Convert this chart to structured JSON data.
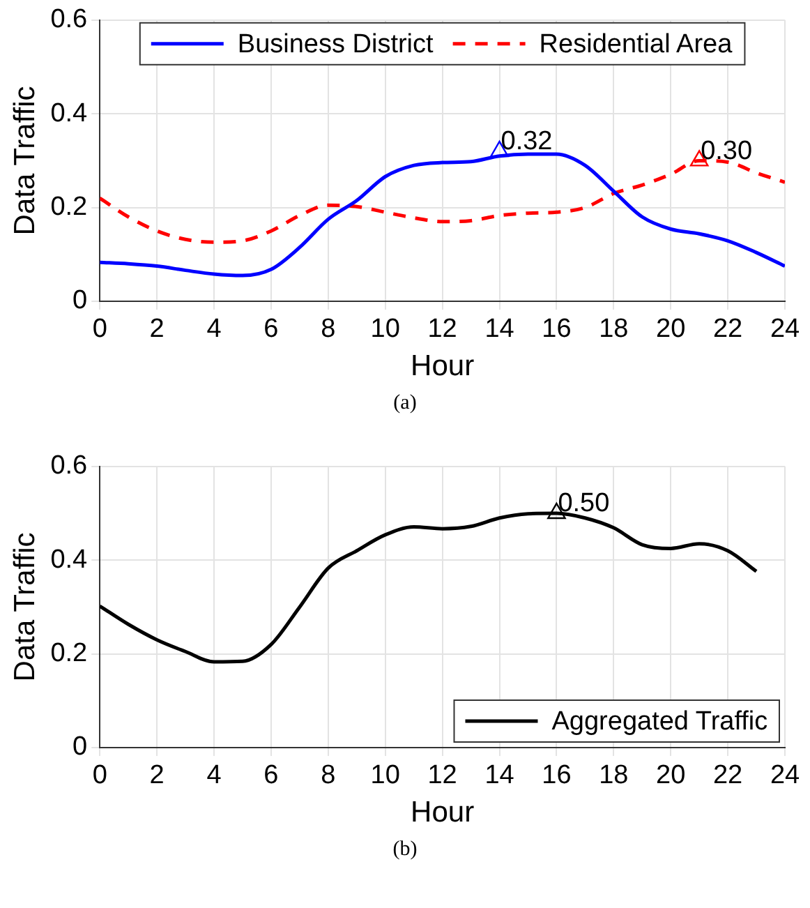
{
  "chart_data": [
    {
      "type": "line",
      "xlabel": "Hour",
      "ylabel": "Data Traffic",
      "x": [
        0,
        1,
        2,
        3,
        4,
        5,
        6,
        7,
        8,
        9,
        10,
        11,
        12,
        13,
        14,
        15,
        16,
        17,
        18,
        19,
        20,
        21,
        22,
        23,
        24
      ],
      "xlim": [
        0,
        24
      ],
      "xticks": [
        0,
        2,
        4,
        6,
        8,
        10,
        12,
        14,
        16,
        18,
        20,
        22,
        24
      ],
      "ylim": [
        0,
        0.6
      ],
      "yticks": [
        0,
        0.2,
        0.4,
        0.6
      ],
      "grid": true,
      "legend": "top",
      "marker": "none",
      "series": [
        {
          "name": "Business District",
          "color": "#0000ff",
          "line_style": "solid",
          "values": [
            0.083,
            0.08,
            0.075,
            0.066,
            0.058,
            0.055,
            0.068,
            0.115,
            0.175,
            0.215,
            0.266,
            0.29,
            0.296,
            0.298,
            0.31,
            0.314,
            0.314,
            0.29,
            0.235,
            0.18,
            0.154,
            0.144,
            0.129,
            0.104,
            0.075
          ]
        },
        {
          "name": "Residential Area",
          "color": "#ff0000",
          "line_style": "dashed",
          "values": [
            0.22,
            0.18,
            0.15,
            0.132,
            0.126,
            0.129,
            0.15,
            0.183,
            0.205,
            0.202,
            0.19,
            0.178,
            0.17,
            0.172,
            0.183,
            0.188,
            0.19,
            0.2,
            0.23,
            0.248,
            0.271,
            0.3,
            0.297,
            0.274,
            0.254
          ]
        },
        {
          "type": "scatter",
          "color": "#0000ff",
          "marker": "triangle",
          "x": [
            14
          ],
          "values": [
            0.32
          ]
        },
        {
          "type": "scatter",
          "color": "#ff0000",
          "marker": "triangle",
          "x": [
            21
          ],
          "values": [
            0.3
          ]
        }
      ],
      "annotations": [
        {
          "text": "0.32",
          "x": 14,
          "y": 0.32
        },
        {
          "text": "0.30",
          "x": 21,
          "y": 0.3
        },
        "(a)"
      ]
    },
    {
      "type": "line",
      "xlabel": "Hour",
      "ylabel": "Data Traffic",
      "x": [
        0,
        1,
        2,
        3,
        4,
        5,
        6,
        7,
        8,
        9,
        10,
        11,
        12,
        13,
        14,
        15,
        16,
        17,
        18,
        19,
        20,
        21,
        22,
        23
      ],
      "xlim": [
        0,
        24
      ],
      "xticks": [
        0,
        2,
        4,
        6,
        8,
        10,
        12,
        14,
        16,
        18,
        20,
        22,
        24
      ],
      "ylim": [
        0,
        0.6
      ],
      "yticks": [
        0,
        0.2,
        0.4,
        0.6
      ],
      "grid": true,
      "legend": "bottom right",
      "marker": "none",
      "series": [
        {
          "name": "Aggregated Traffic",
          "color": "#000000",
          "line_style": "solid",
          "values": [
            0.302,
            0.263,
            0.23,
            0.205,
            0.183,
            0.184,
            0.22,
            0.3,
            0.383,
            0.42,
            0.454,
            0.471,
            0.467,
            0.472,
            0.49,
            0.499,
            0.5,
            0.49,
            0.469,
            0.433,
            0.425,
            0.435,
            0.42,
            0.376
          ]
        },
        {
          "type": "scatter",
          "color": "#000000",
          "marker": "triangle",
          "x": [
            16
          ],
          "values": [
            0.5
          ]
        }
      ],
      "annotations": [
        {
          "text": "0.50",
          "x": 16,
          "y": 0.5
        },
        "(b)"
      ]
    }
  ]
}
